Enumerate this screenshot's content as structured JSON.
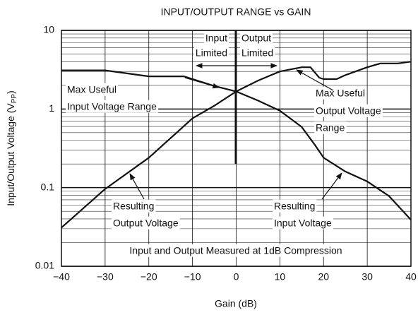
{
  "chart_data": {
    "type": "line",
    "title": "INPUT/OUTPUT RANGE vs GAIN",
    "xlabel": "Gain (dB)",
    "ylabel": {
      "main": "Input/Output Voltage (V",
      "sub": "PP",
      "end": ")"
    },
    "ylog": true,
    "grid": true,
    "minor_grid": true,
    "xlim": [
      -40,
      40
    ],
    "ylim": [
      0.01,
      10
    ],
    "xticks": [
      {
        "value": -40,
        "label": "−40"
      },
      {
        "value": -30,
        "label": "−30"
      },
      {
        "value": -20,
        "label": "−20"
      },
      {
        "value": -10,
        "label": "−10"
      },
      0,
      10,
      20,
      30,
      40
    ],
    "yticks": [
      0.01,
      0.1,
      1,
      10
    ],
    "series": [
      {
        "color": "#111111",
        "x": [
          -40,
          -30,
          -20,
          -15,
          -12,
          -5,
          0,
          5,
          10,
          15,
          18,
          20,
          25,
          30,
          35,
          40
        ],
        "values": [
          3.1,
          3.1,
          2.6,
          2.6,
          2.6,
          1.96,
          1.67,
          1.28,
          0.95,
          0.59,
          0.35,
          0.24,
          0.16,
          0.12,
          0.078,
          0.039
        ]
      },
      {
        "color": "#111111",
        "x": [
          -40,
          -30,
          -20,
          -10,
          -5,
          0,
          5,
          10,
          15,
          17,
          19,
          20,
          23,
          25,
          30,
          33,
          37,
          40
        ],
        "values": [
          0.031,
          0.096,
          0.24,
          0.76,
          1.1,
          1.67,
          2.3,
          3.0,
          3.4,
          3.4,
          2.5,
          2.4,
          2.4,
          2.7,
          3.4,
          3.8,
          3.8,
          4.0
        ]
      }
    ],
    "annotations": {
      "input_limited": [
        "Input",
        "Limited"
      ],
      "output_limited": [
        "Output",
        "Limited"
      ],
      "max_input": [
        "Max Useful",
        "Input Voltage Range"
      ],
      "max_output": [
        "Max Useful",
        "Output Voltage",
        "Range"
      ],
      "result_output": [
        "Resulting",
        "Output Voltage"
      ],
      "result_input": [
        "Resulting",
        "Input Voltage"
      ],
      "footnote": "Input and Output Measured at 1dB Compression"
    }
  }
}
